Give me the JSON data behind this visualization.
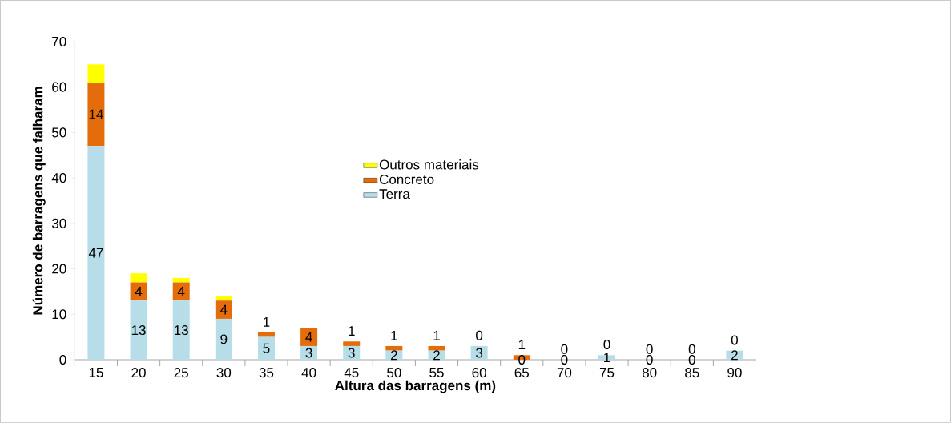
{
  "chart_data": {
    "type": "bar",
    "stacked": true,
    "xlabel": "Altura das barragens (m)",
    "ylabel": "Número de barragens que falharam",
    "categories": [
      "15",
      "20",
      "25",
      "30",
      "35",
      "40",
      "45",
      "50",
      "55",
      "60",
      "65",
      "70",
      "75",
      "80",
      "85",
      "90"
    ],
    "series": [
      {
        "name": "Terra",
        "color": "#b7dde8",
        "values": [
          47,
          13,
          13,
          9,
          5,
          3,
          3,
          2,
          2,
          3,
          0,
          0,
          1,
          0,
          0,
          2
        ],
        "value_labels": [
          "47",
          "13",
          "13",
          "9",
          "5",
          "3",
          "3",
          "2",
          "2",
          "3",
          "0",
          "0",
          "1",
          "0",
          "0",
          "2"
        ]
      },
      {
        "name": "Concreto",
        "color": "#e46c0a",
        "values": [
          14,
          4,
          4,
          4,
          1,
          4,
          1,
          1,
          1,
          0,
          1,
          0,
          0,
          0,
          0,
          0
        ],
        "value_labels": [
          "14",
          "4",
          "4",
          "4",
          "1",
          "4",
          "1",
          "1",
          "1",
          "0",
          "1",
          "0",
          "0",
          "0",
          "0",
          "0"
        ]
      },
      {
        "name": "Outros materiais",
        "color": "#ffff00",
        "values": [
          4,
          2,
          1,
          1,
          0,
          0,
          0,
          0,
          0,
          0,
          0,
          0,
          0,
          0,
          0,
          0
        ]
      }
    ],
    "ylim": [
      0,
      70
    ],
    "yticks": [
      0,
      10,
      20,
      30,
      40,
      50,
      60,
      70
    ],
    "grid": false,
    "legend": "top"
  }
}
